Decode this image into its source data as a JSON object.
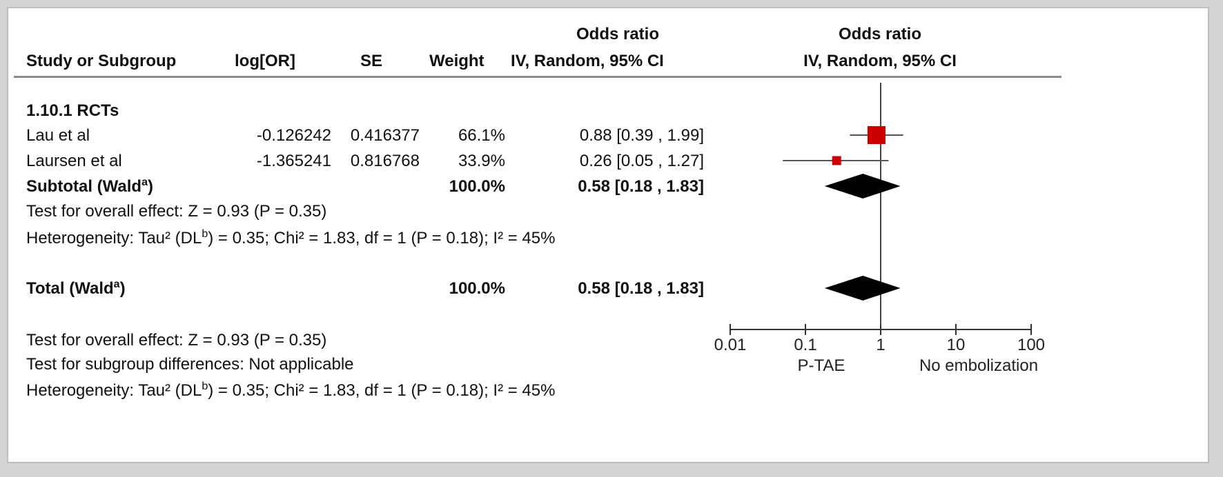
{
  "header": {
    "study": "Study or Subgroup",
    "log_or": "log[OR]",
    "se": "SE",
    "weight": "Weight",
    "or_title": "Odds ratio",
    "or_method": "IV, Random, 95% CI",
    "plot_title": "Odds ratio",
    "plot_method": "IV, Random, 95% CI"
  },
  "subgroup": {
    "label": "1.10.1 RCTs",
    "subtotal_label": "Subtotal (Wald",
    "subtotal_sup": "a",
    "subtotal_close": ")",
    "subtotal_weight": "100.0%",
    "subtotal_ci": "0.58 [0.18 , 1.83]",
    "overall_effect": "Test for overall effect: Z = 0.93 (P = 0.35)",
    "heterogeneity_pre": "Heterogeneity: Tau² (DL",
    "heterogeneity_sup": "b",
    "heterogeneity_post": ") = 0.35; Chi² = 1.83, df = 1 (P = 0.18); I² = 45%"
  },
  "studies": [
    {
      "name": "Lau et al",
      "log_or": "-0.126242",
      "se": "0.416377",
      "weight": "66.1%",
      "ci": "0.88 [0.39 , 1.99]"
    },
    {
      "name": "Laursen et al",
      "log_or": "-1.365241",
      "se": "0.816768",
      "weight": "33.9%",
      "ci": "0.26 [0.05 , 1.27]"
    }
  ],
  "total": {
    "label": "Total (Wald",
    "sup": "a",
    "close": ")",
    "weight": "100.0%",
    "ci": "0.58 [0.18 , 1.83]",
    "overall_effect": "Test for overall effect: Z = 0.93 (P = 0.35)",
    "subgroup_diff": "Test for subgroup differences: Not applicable",
    "heterogeneity_pre": "Heterogeneity: Tau² (DL",
    "heterogeneity_sup": "b",
    "heterogeneity_post": ") = 0.35; Chi² = 1.83, df = 1 (P = 0.18); I² = 45%"
  },
  "axis": {
    "ticks": [
      "0.01",
      "0.1",
      "1",
      "10",
      "100"
    ],
    "left_label": "P-TAE",
    "right_label": "No embolization"
  },
  "colors": {
    "study_marker": "#cc0000",
    "diamond": "#000000"
  },
  "chart_data": {
    "type": "forest",
    "scale": "log",
    "xlim": [
      0.01,
      100
    ],
    "ticks": [
      0.01,
      0.1,
      1,
      10,
      100
    ],
    "null_line": 1,
    "studies": [
      {
        "name": "Lau et al",
        "or": 0.88,
        "lower": 0.39,
        "upper": 1.99,
        "weight": 66.1
      },
      {
        "name": "Laursen et al",
        "or": 0.26,
        "lower": 0.05,
        "upper": 1.27,
        "weight": 33.9
      }
    ],
    "subtotal": {
      "or": 0.58,
      "lower": 0.18,
      "upper": 1.83
    },
    "total": {
      "or": 0.58,
      "lower": 0.18,
      "upper": 1.83
    }
  }
}
